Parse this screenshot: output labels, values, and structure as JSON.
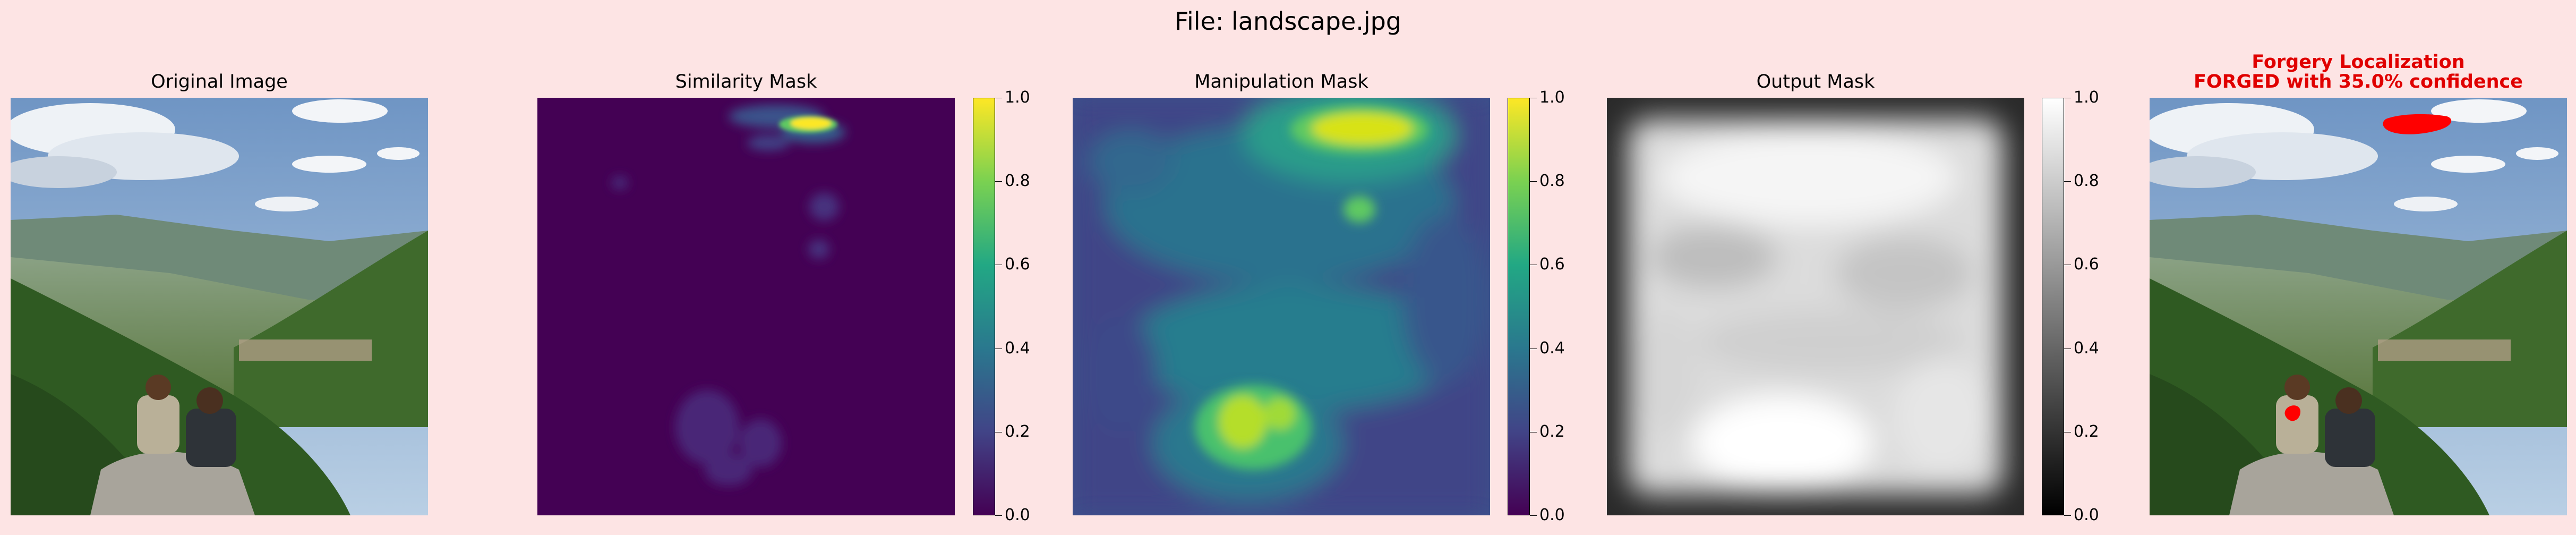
{
  "figure": {
    "suptitle": "File: landscape.jpg"
  },
  "panels": [
    {
      "id": "original",
      "title": "Original Image"
    },
    {
      "id": "similarity",
      "title": "Similarity Mask"
    },
    {
      "id": "manipulation",
      "title": "Manipulation Mask"
    },
    {
      "id": "output",
      "title": "Output Mask"
    },
    {
      "id": "localization",
      "title_line1": "Forgery Localization",
      "title_line2": "FORGED with 35.0% confidence",
      "title_color": "#e00000"
    }
  ],
  "colorbars": [
    {
      "panel": "similarity",
      "colormap": "viridis",
      "ticks": [
        "0.0",
        "0.2",
        "0.4",
        "0.6",
        "0.8",
        "1.0"
      ]
    },
    {
      "panel": "manipulation",
      "colormap": "viridis",
      "ticks": [
        "0.0",
        "0.2",
        "0.4",
        "0.6",
        "0.8",
        "1.0"
      ]
    },
    {
      "panel": "output",
      "colormap": "gray",
      "ticks": [
        "0.0",
        "0.2",
        "0.4",
        "0.6",
        "0.8",
        "1.0"
      ]
    }
  ],
  "chart_data": {
    "type": "heatmap",
    "colorbar_range": [
      0,
      1
    ],
    "forgery_confidence_percent": 35.0,
    "colors": {
      "viridis_low": "#440154",
      "viridis_mid": "#21918c",
      "viridis_high": "#fde725",
      "forgery_overlay": "#ff0000",
      "background": "#fde4e4"
    }
  }
}
